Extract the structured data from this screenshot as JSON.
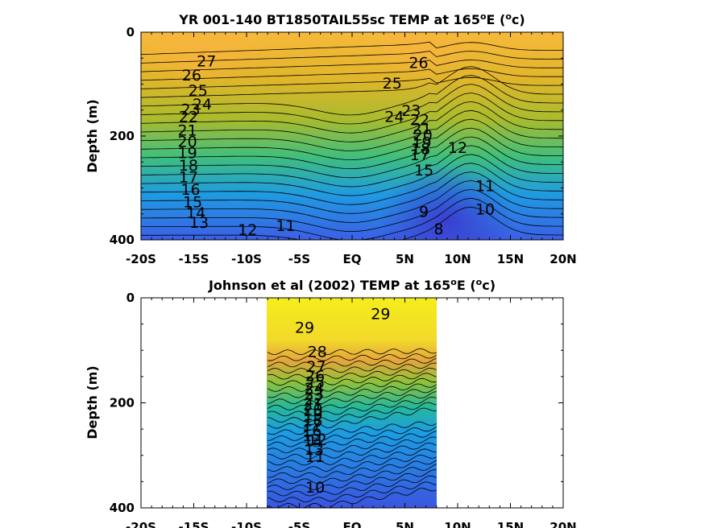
{
  "chart_data": [
    {
      "type": "contour",
      "title": "YR 001-140 BT1850TAIL55sc TEMP at 165",
      "title_sup": "o",
      "title_after": "E (",
      "title_unit_sup": "o",
      "title_end": "c)",
      "ylabel": "Depth (m)",
      "xlim": [
        -20,
        20
      ],
      "ylim": [
        0,
        400
      ],
      "y_reversed": true,
      "x_ticks": [
        -20,
        -15,
        -10,
        -5,
        0,
        5,
        10,
        15,
        20
      ],
      "x_tick_labels": [
        "-20S",
        "-15S",
        "-10S",
        "-5S",
        "EQ",
        "5N",
        "10N",
        "15N",
        "20N"
      ],
      "y_ticks": [
        0,
        200,
        400
      ],
      "y_tick_labels": [
        "0",
        "200",
        "400"
      ],
      "data_extent_x": [
        -20,
        20
      ],
      "contour_labels": [
        {
          "text": "27",
          "x": -13.8,
          "y": 55
        },
        {
          "text": "26",
          "x": -15.2,
          "y": 82
        },
        {
          "text": "25",
          "x": -14.6,
          "y": 112
        },
        {
          "text": "24",
          "x": -14.2,
          "y": 138
        },
        {
          "text": "23",
          "x": -15.3,
          "y": 148
        },
        {
          "text": "22",
          "x": -15.5,
          "y": 162
        },
        {
          "text": "21",
          "x": -15.6,
          "y": 188
        },
        {
          "text": "20",
          "x": -15.6,
          "y": 210
        },
        {
          "text": "19",
          "x": -15.6,
          "y": 232
        },
        {
          "text": "18",
          "x": -15.5,
          "y": 256
        },
        {
          "text": "17",
          "x": -15.5,
          "y": 278
        },
        {
          "text": "16",
          "x": -15.3,
          "y": 302
        },
        {
          "text": "15",
          "x": -15.1,
          "y": 326
        },
        {
          "text": "14",
          "x": -14.8,
          "y": 347
        },
        {
          "text": "13",
          "x": -14.5,
          "y": 366
        },
        {
          "text": "12",
          "x": -9.9,
          "y": 380
        },
        {
          "text": "11",
          "x": -6.3,
          "y": 372
        },
        {
          "text": "26",
          "x": 6.3,
          "y": 58
        },
        {
          "text": "25",
          "x": 3.8,
          "y": 98
        },
        {
          "text": "24",
          "x": 4.0,
          "y": 162
        },
        {
          "text": "23",
          "x": 5.6,
          "y": 150
        },
        {
          "text": "22",
          "x": 6.4,
          "y": 168
        },
        {
          "text": "21",
          "x": 6.6,
          "y": 185
        },
        {
          "text": "20",
          "x": 6.7,
          "y": 198
        },
        {
          "text": "19",
          "x": 6.6,
          "y": 212
        },
        {
          "text": "18",
          "x": 6.5,
          "y": 224
        },
        {
          "text": "17",
          "x": 6.4,
          "y": 236
        },
        {
          "text": "15",
          "x": 6.8,
          "y": 265
        },
        {
          "text": "12",
          "x": 10.0,
          "y": 222
        },
        {
          "text": "11",
          "x": 12.6,
          "y": 295
        },
        {
          "text": "10",
          "x": 12.6,
          "y": 340
        },
        {
          "text": "9",
          "x": 6.8,
          "y": 345
        },
        {
          "text": "8",
          "x": 8.2,
          "y": 378
        }
      ]
    },
    {
      "type": "contour",
      "title": "Johnson et al (2002) TEMP at 165",
      "title_sup": "o",
      "title_after": "E (",
      "title_unit_sup": "o",
      "title_end": "c)",
      "ylabel": "Depth (m)",
      "xlim": [
        -20,
        20
      ],
      "ylim": [
        0,
        400
      ],
      "y_reversed": true,
      "x_ticks": [
        -20,
        -15,
        -10,
        -5,
        0,
        5,
        10,
        15,
        20
      ],
      "x_tick_labels": [
        "-20S",
        "-15S",
        "-10S",
        "-5S",
        "EQ",
        "5N",
        "10N",
        "15N",
        "20N"
      ],
      "y_ticks": [
        0,
        200,
        400
      ],
      "y_tick_labels": [
        "0",
        "200",
        "400"
      ],
      "data_extent_x": [
        -8,
        8
      ],
      "contour_labels": [
        {
          "text": "29",
          "x": -4.5,
          "y": 56
        },
        {
          "text": "29",
          "x": 2.7,
          "y": 30
        },
        {
          "text": "28",
          "x": -3.3,
          "y": 102
        },
        {
          "text": "27",
          "x": -3.4,
          "y": 130
        },
        {
          "text": "26",
          "x": -3.5,
          "y": 148
        },
        {
          "text": "25",
          "x": -3.5,
          "y": 160
        },
        {
          "text": "24",
          "x": -3.6,
          "y": 172
        },
        {
          "text": "23",
          "x": -3.6,
          "y": 182
        },
        {
          "text": "22",
          "x": -3.6,
          "y": 192
        },
        {
          "text": "21",
          "x": -3.7,
          "y": 202
        },
        {
          "text": "20",
          "x": -3.7,
          "y": 212
        },
        {
          "text": "19",
          "x": -3.7,
          "y": 222
        },
        {
          "text": "18",
          "x": -3.7,
          "y": 232
        },
        {
          "text": "17",
          "x": -3.8,
          "y": 242
        },
        {
          "text": "16",
          "x": -3.8,
          "y": 252
        },
        {
          "text": "15",
          "x": -3.8,
          "y": 262
        },
        {
          "text": "14",
          "x": -3.7,
          "y": 272
        },
        {
          "text": "13",
          "x": -3.6,
          "y": 288
        },
        {
          "text": "12",
          "x": -3.3,
          "y": 270
        },
        {
          "text": "11",
          "x": -3.5,
          "y": 302
        },
        {
          "text": "10",
          "x": -3.5,
          "y": 360
        }
      ]
    }
  ]
}
